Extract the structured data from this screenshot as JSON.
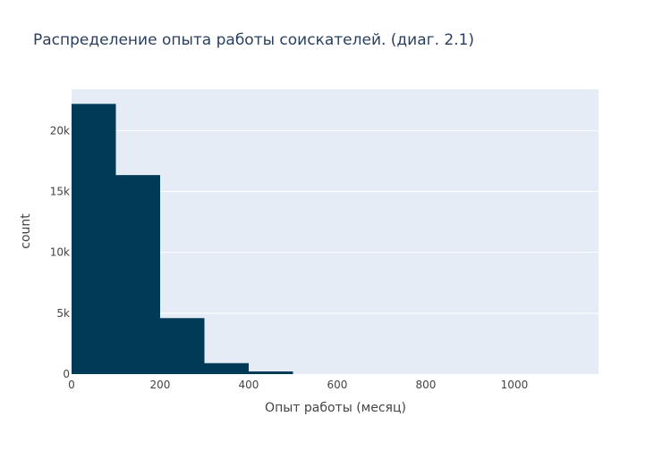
{
  "chart_data": {
    "type": "histogram",
    "title": "Распределение опыта работы соискателей. (диаг. 2.1)",
    "xlabel": "Опыт работы (месяц)",
    "ylabel": "count",
    "xlim": [
      0,
      1190
    ],
    "ylim": [
      0,
      23400
    ],
    "x_ticks": [
      {
        "value": 0,
        "label": "0"
      },
      {
        "value": 200,
        "label": "200"
      },
      {
        "value": 400,
        "label": "400"
      },
      {
        "value": 600,
        "label": "600"
      },
      {
        "value": 800,
        "label": "800"
      },
      {
        "value": 1000,
        "label": "1000"
      }
    ],
    "y_ticks": [
      {
        "value": 0,
        "label": "0"
      },
      {
        "value": 5000,
        "label": "5k"
      },
      {
        "value": 10000,
        "label": "10k"
      },
      {
        "value": 15000,
        "label": "15k"
      },
      {
        "value": 20000,
        "label": "20k"
      }
    ],
    "bins": [
      {
        "x0": 0,
        "x1": 100,
        "count": 22200
      },
      {
        "x0": 100,
        "x1": 200,
        "count": 16350
      },
      {
        "x0": 200,
        "x1": 300,
        "count": 4600
      },
      {
        "x0": 300,
        "x1": 400,
        "count": 900
      },
      {
        "x0": 400,
        "x1": 500,
        "count": 220
      }
    ],
    "grid": true,
    "colors": {
      "bar": "#003a57",
      "plot_bg": "#e5ecf6",
      "grid": "#ffffff",
      "text": "#444444",
      "title": "#2a3f5f"
    }
  }
}
